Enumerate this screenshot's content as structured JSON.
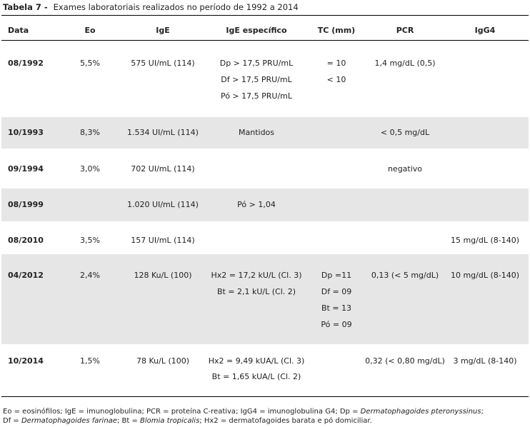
{
  "caption": {
    "label": "Tabela 7 -",
    "text": "Exames laboratoriais realizados no período de 1992 a 2014"
  },
  "columns": [
    "Data",
    "Eo",
    "IgE",
    "IgE específico",
    "TC (mm)",
    "PCR",
    "IgG4"
  ],
  "rows": [
    {
      "date": "08/1992",
      "eo": "5,5%",
      "ige": "575 UI/mL (114)",
      "ige_especifico": [
        "Dp > 17,5 PRU/mL",
        "Df > 17,5 PRU/mL",
        "Pó > 17,5 PRU/mL"
      ],
      "tc": [
        "= 10",
        "< 10"
      ],
      "pcr": "1,4 mg/dL (0,5)",
      "igg4": ""
    },
    {
      "date": "10/1993",
      "eo": "8,3%",
      "ige": "1.534 UI/mL (114)",
      "ige_especifico": [
        "Mantidos"
      ],
      "tc": [],
      "pcr": "< 0,5 mg/dL",
      "igg4": ""
    },
    {
      "date": "09/1994",
      "eo": "3,0%",
      "ige": "702 UI/mL (114)",
      "ige_especifico": [],
      "tc": [],
      "pcr": "negativo",
      "igg4": ""
    },
    {
      "date": "08/1999",
      "eo": "",
      "ige": "1.020 UI/mL (114)",
      "ige_especifico": [
        "Pó > 1,04"
      ],
      "tc": [],
      "pcr": "",
      "igg4": ""
    },
    {
      "date": "08/2010",
      "eo": "3,5%",
      "ige": "157 UI/mL (114)",
      "ige_especifico": [],
      "tc": [],
      "pcr": "",
      "igg4": "15 mg/dL (8-140)"
    },
    {
      "date": "04/2012",
      "eo": "2,4%",
      "ige": "128 Ku/L (100)",
      "ige_especifico": [
        "Hx2 = 17,2 kU/L (Cl. 3)",
        "Bt = 2,1 kU/L (Cl. 2)"
      ],
      "tc": [
        "Dp =11",
        "Df = 09",
        "Bt = 13",
        "Pó = 09"
      ],
      "pcr": "0,13 (< 5 mg/dL)",
      "igg4": "10 mg/dL (8-140)"
    },
    {
      "date": "10/2014",
      "eo": "1,5%",
      "ige": "78 Ku/L (100)",
      "ige_especifico": [
        "Hx2 = 9,49 kUA/L (Cl. 3)",
        "Bt = 1,65 kUA/L (Cl. 2)"
      ],
      "tc": [],
      "pcr": "0,32 (< 0,80 mg/dL)",
      "igg4": "3 mg/dL (8-140)"
    }
  ],
  "footnote": {
    "l1_a": "Eo = eosinófilos; IgE = imunoglobulina; PCR = proteína C-reativa; IgG4 = imunoglobulina G4; Dp = ",
    "l1_b": "Dermatophagoides pteronyssinus",
    "l1_c": ";",
    "l2_a": "Df = ",
    "l2_b": "Dermatophagoides farinae",
    "l2_c": "; Bt = ",
    "l2_d": "Blomia tropicalis",
    "l2_e": "; Hx2 = dermatofagoides barata e pó domiciliar."
  }
}
